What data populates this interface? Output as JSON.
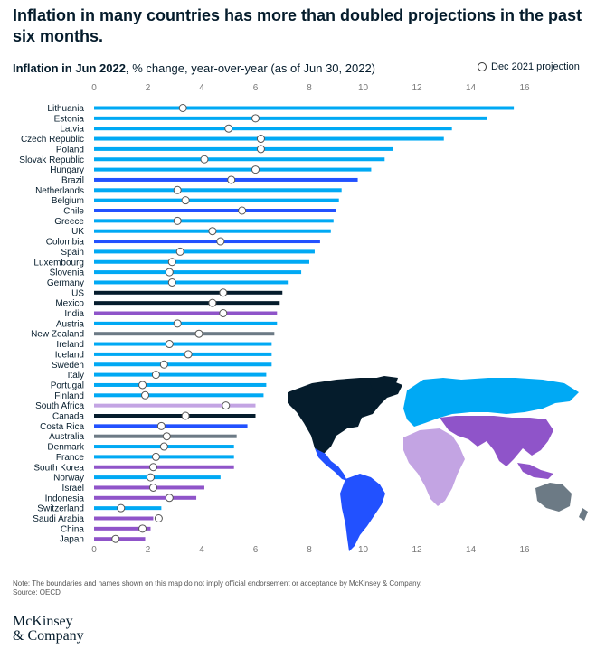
{
  "title": "Inflation in many countries has more than doubled projections in the past six months.",
  "subtitle_bold": "Inflation in Jun 2022,",
  "subtitle_rest": " % change, year-over-year (as of Jun 30, 2022)",
  "legend_label": "Dec 2021 projection",
  "note": "Note: The boundaries and names shown on this map do not imply official endorsement or acceptance by McKinsey & Company.",
  "source": "Source: OECD",
  "brand_line1": "McKinsey",
  "brand_line2": "& Company",
  "colors": {
    "europe": "#00a9f4",
    "americas": "#2251ff",
    "north_america": "#051c2c",
    "asia_africa": "#8f54c9",
    "africa": "#c3a4e3",
    "oceania": "#6c7a85",
    "map_europe": "#00a9f4",
    "marker_stroke": "#555555"
  },
  "chart_data": {
    "type": "bar",
    "orientation": "horizontal",
    "title": "Inflation in Jun 2022",
    "xlabel": "% change, year-over-year (as of Jun 30, 2022)",
    "xlim": [
      0,
      16
    ],
    "xticks": [
      0,
      2,
      4,
      6,
      8,
      10,
      12,
      14,
      16
    ],
    "categories": [
      "Lithuania",
      "Estonia",
      "Latvia",
      "Czech Republic",
      "Poland",
      "Slovak Republic",
      "Hungary",
      "Brazil",
      "Netherlands",
      "Belgium",
      "Chile",
      "Greece",
      "UK",
      "Colombia",
      "Spain",
      "Luxembourg",
      "Slovenia",
      "Germany",
      "US",
      "Mexico",
      "India",
      "Austria",
      "New Zealand",
      "Ireland",
      "Iceland",
      "Sweden",
      "Italy",
      "Portugal",
      "Finland",
      "South Africa",
      "Canada",
      "Costa Rica",
      "Australia",
      "Denmark",
      "France",
      "South Korea",
      "Norway",
      "Israel",
      "Indonesia",
      "Switzerland",
      "Saudi Arabia",
      "China",
      "Japan"
    ],
    "series": [
      {
        "name": "Inflation Jun 2022",
        "values": [
          15.6,
          14.6,
          13.3,
          13.0,
          11.1,
          10.8,
          10.3,
          9.8,
          9.2,
          9.1,
          9.0,
          8.9,
          8.8,
          8.4,
          8.2,
          8.0,
          7.7,
          7.2,
          7.0,
          6.9,
          6.8,
          6.8,
          6.7,
          6.6,
          6.6,
          6.6,
          6.4,
          6.4,
          6.3,
          6.0,
          6.0,
          5.7,
          5.3,
          5.2,
          5.2,
          5.2,
          4.7,
          4.1,
          3.8,
          2.5,
          2.2,
          2.1,
          1.9
        ]
      },
      {
        "name": "Dec 2021 projection",
        "values": [
          3.3,
          6.0,
          5.0,
          6.2,
          6.2,
          4.1,
          6.0,
          5.1,
          3.1,
          3.4,
          5.5,
          3.1,
          4.4,
          4.7,
          3.2,
          2.9,
          2.8,
          2.9,
          4.8,
          4.4,
          4.8,
          3.1,
          3.9,
          2.8,
          3.5,
          2.6,
          2.3,
          1.8,
          1.9,
          4.9,
          3.4,
          2.5,
          2.7,
          2.6,
          2.3,
          2.2,
          2.1,
          2.2,
          2.8,
          1.0,
          2.4,
          1.8,
          0.8
        ]
      }
    ],
    "groups": [
      "europe",
      "europe",
      "europe",
      "europe",
      "europe",
      "europe",
      "europe",
      "americas",
      "europe",
      "europe",
      "americas",
      "europe",
      "europe",
      "americas",
      "europe",
      "europe",
      "europe",
      "europe",
      "north_america",
      "north_america",
      "asia_africa",
      "europe",
      "oceania",
      "europe",
      "europe",
      "europe",
      "europe",
      "europe",
      "europe",
      "africa",
      "north_america",
      "americas",
      "oceania",
      "europe",
      "europe",
      "asia_africa",
      "europe",
      "asia_africa",
      "asia_africa",
      "europe",
      "asia_africa",
      "asia_africa",
      "asia_africa"
    ]
  }
}
